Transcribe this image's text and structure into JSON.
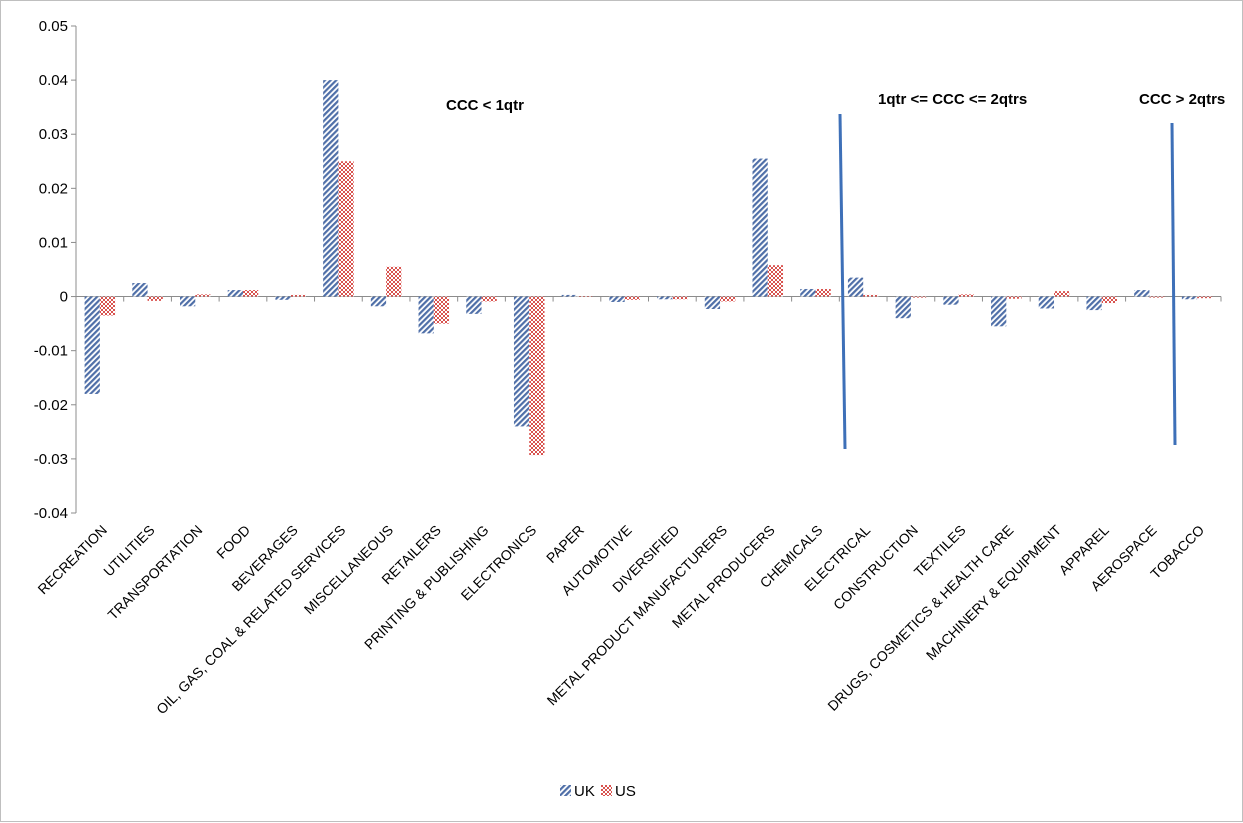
{
  "chart_data": {
    "type": "bar",
    "categories": [
      "RECREATION",
      "UTILITIES",
      "TRANSPORTATION",
      "FOOD",
      "BEVERAGES",
      "OIL, GAS, COAL & RELATED SERVICES",
      "MISCELLANEOUS",
      "RETAILERS",
      "PRINTING & PUBLISHING",
      "ELECTRONICS",
      "PAPER",
      "AUTOMOTIVE",
      "DIVERSIFIED",
      "METAL PRODUCT MANUFACTURERS",
      "METAL PRODUCERS",
      "CHEMICALS",
      "ELECTRICAL",
      "CONSTRUCTION",
      "TEXTILES",
      "DRUGS, COSMETICS & HEALTH CARE",
      "MACHINERY & EQUIPMENT",
      "APPAREL",
      "AEROSPACE",
      "TOBACCO"
    ],
    "series": [
      {
        "name": "UK",
        "color": "#4f6fa8",
        "pattern": "diagonal-stripes",
        "values": [
          -0.018,
          0.0025,
          -0.0018,
          0.0012,
          -0.0006,
          0.04,
          -0.0018,
          -0.0068,
          -0.0032,
          -0.024,
          0.0003,
          -0.001,
          -0.0005,
          -0.0023,
          0.0255,
          0.0014,
          0.0035,
          -0.004,
          -0.0015,
          -0.0055,
          -0.0022,
          -0.0025,
          0.0012,
          -0.0005
        ]
      },
      {
        "name": "US",
        "color": "#d9534f",
        "pattern": "checkered",
        "values": [
          -0.0035,
          -0.0008,
          0.0004,
          0.0012,
          0.0003,
          0.025,
          0.0055,
          -0.005,
          -0.0009,
          -0.0293,
          0.0001,
          -0.0006,
          -0.0005,
          -0.0009,
          0.0058,
          0.0014,
          0.0003,
          -0.0002,
          0.0004,
          -0.0004,
          0.001,
          -0.0012,
          -0.0002,
          -0.0003
        ]
      }
    ],
    "yticks": [
      "0.05",
      "0.04",
      "0.03",
      "0.02",
      "0.01",
      "0",
      "-0.01",
      "-0.02",
      "-0.03",
      "-0.04"
    ],
    "ylim": [
      -0.04,
      0.05
    ],
    "grid": false,
    "legend_position": "bottom",
    "annotations": [
      {
        "text": "CCC < 1qtr"
      },
      {
        "text": "1qtr <= CCC <= 2qtrs"
      },
      {
        "text": "CCC > 2qtrs"
      }
    ],
    "separators_color": "#3e70b8"
  }
}
